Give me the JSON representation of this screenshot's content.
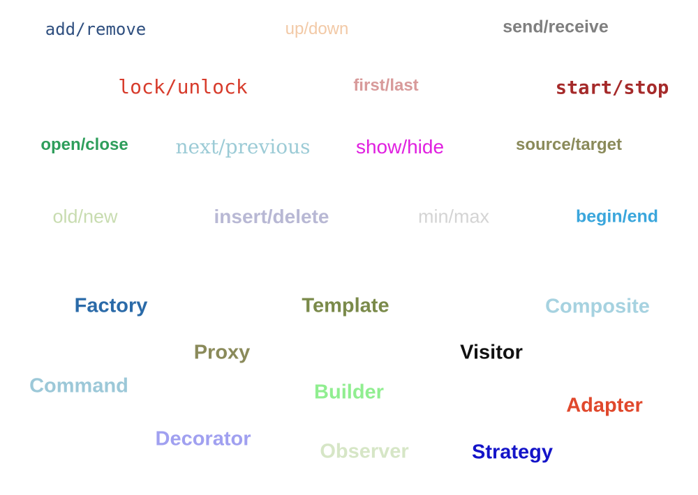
{
  "words": [
    {
      "text": "add/remove",
      "color": "#2f4f7f"
    },
    {
      "text": "up/down",
      "color": "#f2c9a6"
    },
    {
      "text": "send/receive",
      "color": "#7f7f7f"
    },
    {
      "text": "lock/unlock",
      "color": "#d73c2c"
    },
    {
      "text": "first/last",
      "color": "#d89a9a"
    },
    {
      "text": "start/stop",
      "color": "#a52a2a"
    },
    {
      "text": "open/close",
      "color": "#2e9e5b"
    },
    {
      "text": "next/previous",
      "color": "#9ccbd6"
    },
    {
      "text": "show/hide",
      "color": "#e020e0"
    },
    {
      "text": "source/target",
      "color": "#8a8a5a"
    },
    {
      "text": "old/new",
      "color": "#c8dcb0"
    },
    {
      "text": "insert/delete",
      "color": "#b8b8d4"
    },
    {
      "text": "min/max",
      "color": "#d4d4d4"
    },
    {
      "text": "begin/end",
      "color": "#3aa6dc"
    },
    {
      "text": "Factory",
      "color": "#2a6aa8"
    },
    {
      "text": "Template",
      "color": "#7a8a4a"
    },
    {
      "text": "Composite",
      "color": "#a6d2e0"
    },
    {
      "text": "Proxy",
      "color": "#8a8a5a"
    },
    {
      "text": "Visitor",
      "color": "#111111"
    },
    {
      "text": "Command",
      "color": "#9cc8d8"
    },
    {
      "text": "Builder",
      "color": "#90ee90"
    },
    {
      "text": "Adapter",
      "color": "#e0482c"
    },
    {
      "text": "Decorator",
      "color": "#a0a0f0"
    },
    {
      "text": "Observer",
      "color": "#d6e6c6"
    },
    {
      "text": "Strategy",
      "color": "#1414c8"
    }
  ]
}
